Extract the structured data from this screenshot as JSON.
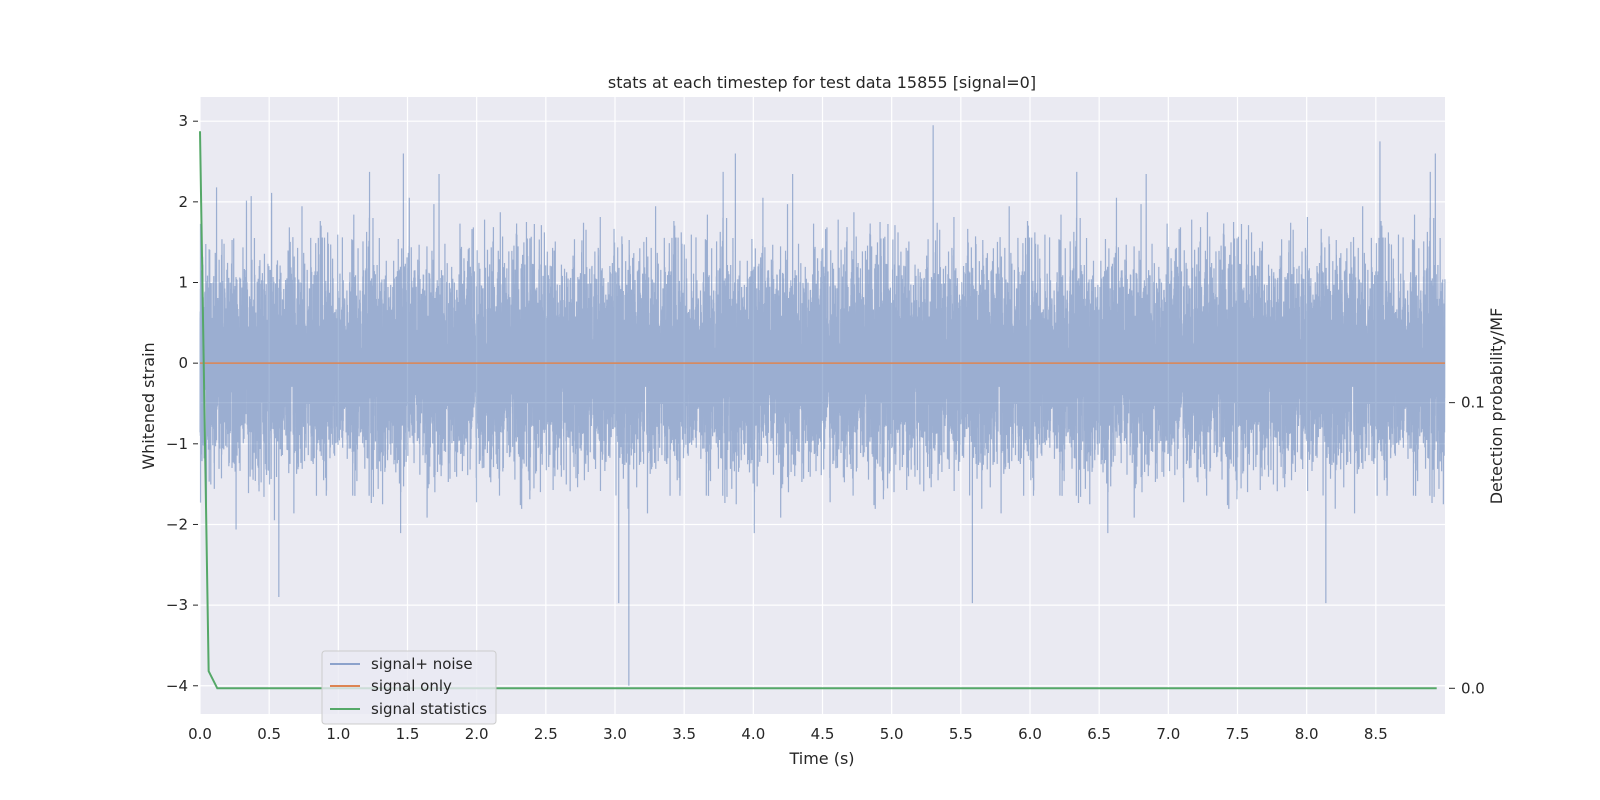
{
  "chart_data": {
    "type": "line",
    "title": "stats at each timestep for test data 15855 [signal=0]",
    "xlabel": "Time (s)",
    "ylabel": "Whitened strain",
    "ylabel_right": "Detection probability/MF",
    "xlim": [
      0.0,
      9.0
    ],
    "ylim": [
      -4.35,
      3.3
    ],
    "ylim_right": [
      -0.009,
      0.207
    ],
    "grid": true,
    "legend_position": "lower-left",
    "x_ticks": [
      "0.0",
      "0.5",
      "1.0",
      "1.5",
      "2.0",
      "2.5",
      "3.0",
      "3.5",
      "4.0",
      "4.5",
      "5.0",
      "5.5",
      "6.0",
      "6.5",
      "7.0",
      "7.5",
      "8.0",
      "8.5"
    ],
    "x_tick_values": [
      0.0,
      0.5,
      1.0,
      1.5,
      2.0,
      2.5,
      3.0,
      3.5,
      4.0,
      4.5,
      5.0,
      5.5,
      6.0,
      6.5,
      7.0,
      7.5,
      8.0,
      8.5
    ],
    "y_ticks": [
      "3",
      "2",
      "1",
      "0",
      "−1",
      "−2",
      "−3",
      "−4"
    ],
    "y_tick_values": [
      3,
      2,
      1,
      0,
      -1,
      -2,
      -3,
      -4
    ],
    "y_right_ticks": [
      "0.1",
      "0.0"
    ],
    "y_right_tick_values": [
      0.1,
      0.0
    ],
    "series": [
      {
        "name": "signal+ noise",
        "color": "#4c72b0",
        "axis": "left",
        "description_range": [
          -4.0,
          2.95
        ],
        "sample_rate_per_s": 2048,
        "duration_s": 9.0,
        "peaks": [
          {
            "x": 0.57,
            "y": -2.9
          },
          {
            "x": 1.47,
            "y": 2.6
          },
          {
            "x": 3.1,
            "y": -4.0
          },
          {
            "x": 3.87,
            "y": 2.6
          },
          {
            "x": 5.3,
            "y": 2.95
          },
          {
            "x": 8.53,
            "y": 2.75
          },
          {
            "x": 8.93,
            "y": 2.6
          }
        ]
      },
      {
        "name": "signal only",
        "color": "#dd8452",
        "axis": "left",
        "x": [
          0.0,
          9.0
        ],
        "y": [
          0.0,
          0.0
        ]
      },
      {
        "name": "signal statistics",
        "color": "#55a868",
        "axis": "right",
        "x": [
          0.0,
          0.0625,
          0.125,
          0.1875,
          1.0,
          2.0,
          3.0,
          4.0,
          5.0,
          6.0,
          7.0,
          8.0,
          8.94
        ],
        "y": [
          0.195,
          0.006,
          0.0,
          0.0,
          0.0,
          0.0,
          0.0,
          0.0,
          0.0,
          0.0,
          0.0,
          0.0,
          0.0
        ]
      }
    ]
  },
  "colors": {
    "plot_background": "#eaeaf2",
    "grid": "#ffffff"
  }
}
